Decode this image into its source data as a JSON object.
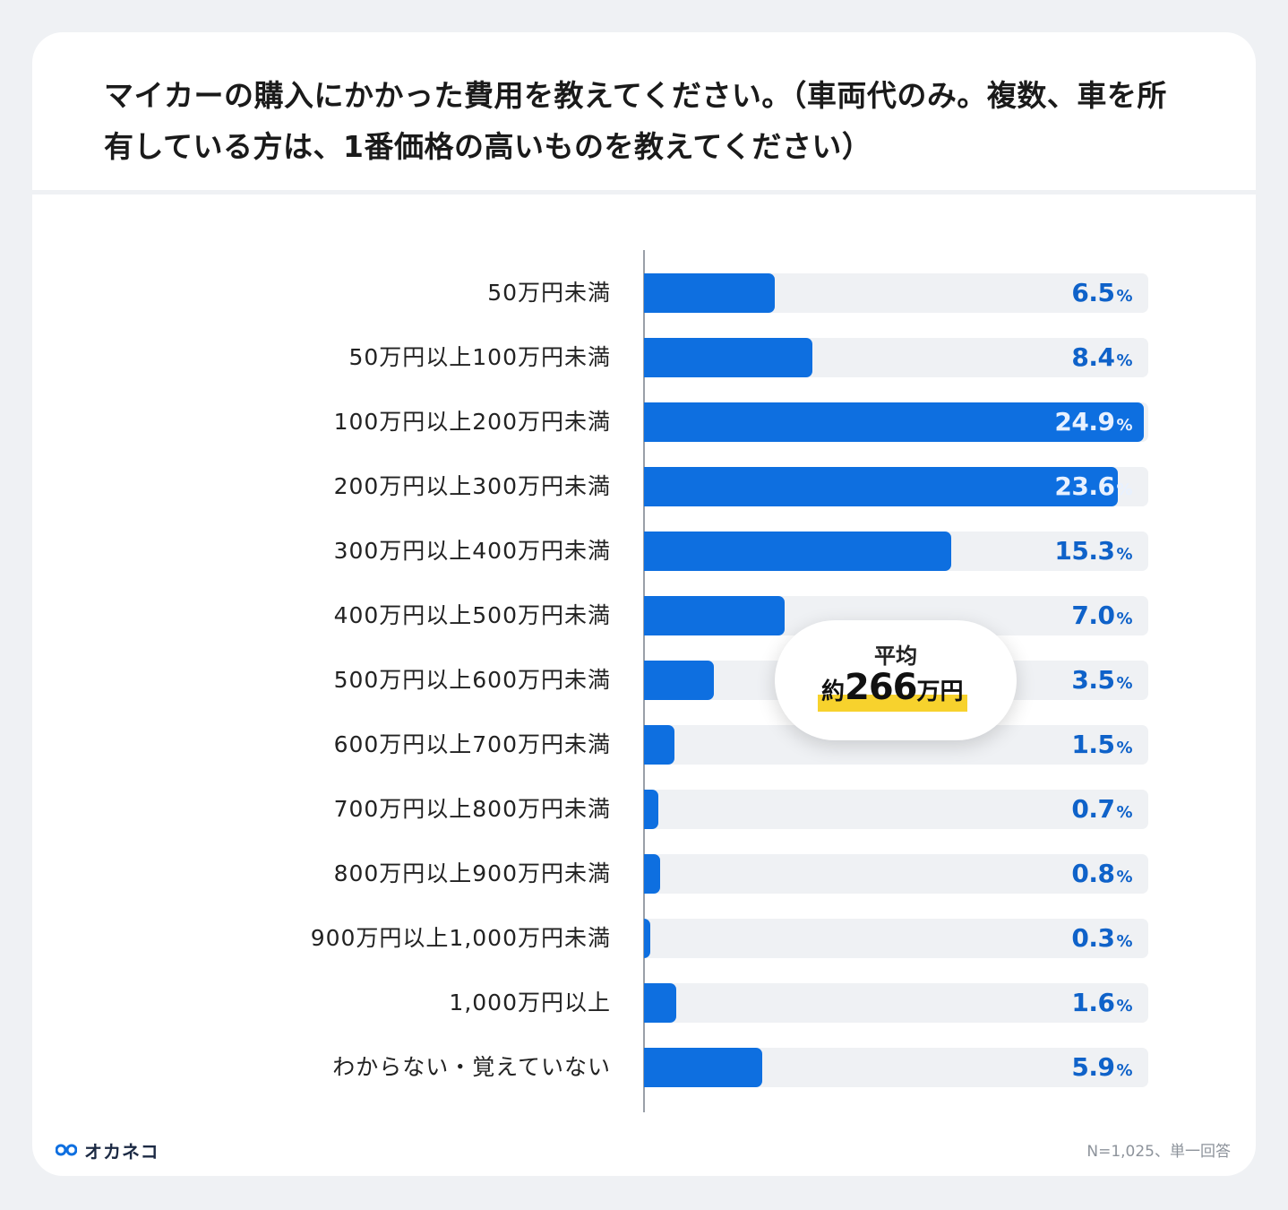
{
  "title": "マイカーの購入にかかった費用を教えてください。（車両代のみ。複数、車を所有している方は、1番価格の高いものを教えてください）",
  "chart_data": {
    "type": "bar",
    "orientation": "horizontal",
    "categories": [
      "50万円未満",
      "50万円以上100万円未満",
      "100万円以上200万円未満",
      "200万円以上300万円未満",
      "300万円以上400万円未満",
      "400万円以上500万円未満",
      "500万円以上600万円未満",
      "600万円以上700万円未満",
      "700万円以上800万円未満",
      "800万円以上900万円未満",
      "900万円以上1,000万円未満",
      "1,000万円以上",
      "わからない・覚えていない"
    ],
    "values": [
      6.5,
      8.4,
      24.9,
      23.6,
      15.3,
      7.0,
      3.5,
      1.5,
      0.7,
      0.8,
      0.3,
      1.6,
      5.9
    ],
    "value_labels": [
      "6.5",
      "8.4",
      "24.9",
      "23.6",
      "15.3",
      "7.0",
      "3.5",
      "1.5",
      "0.7",
      "0.8",
      "0.3",
      "1.6",
      "5.9"
    ],
    "unit": "%",
    "xlim": [
      0,
      25
    ],
    "bar_color": "#0e6fe0",
    "track_color": "#eff1f4",
    "value_color": "#0f62c9"
  },
  "average": {
    "label": "平均",
    "prefix": "約",
    "value": "266",
    "suffix": "万円",
    "highlight_color": "#f7d22d"
  },
  "brand": {
    "name": "オカネコ",
    "icon": "okane-logo-icon"
  },
  "note": "N=1,025、単一回答"
}
